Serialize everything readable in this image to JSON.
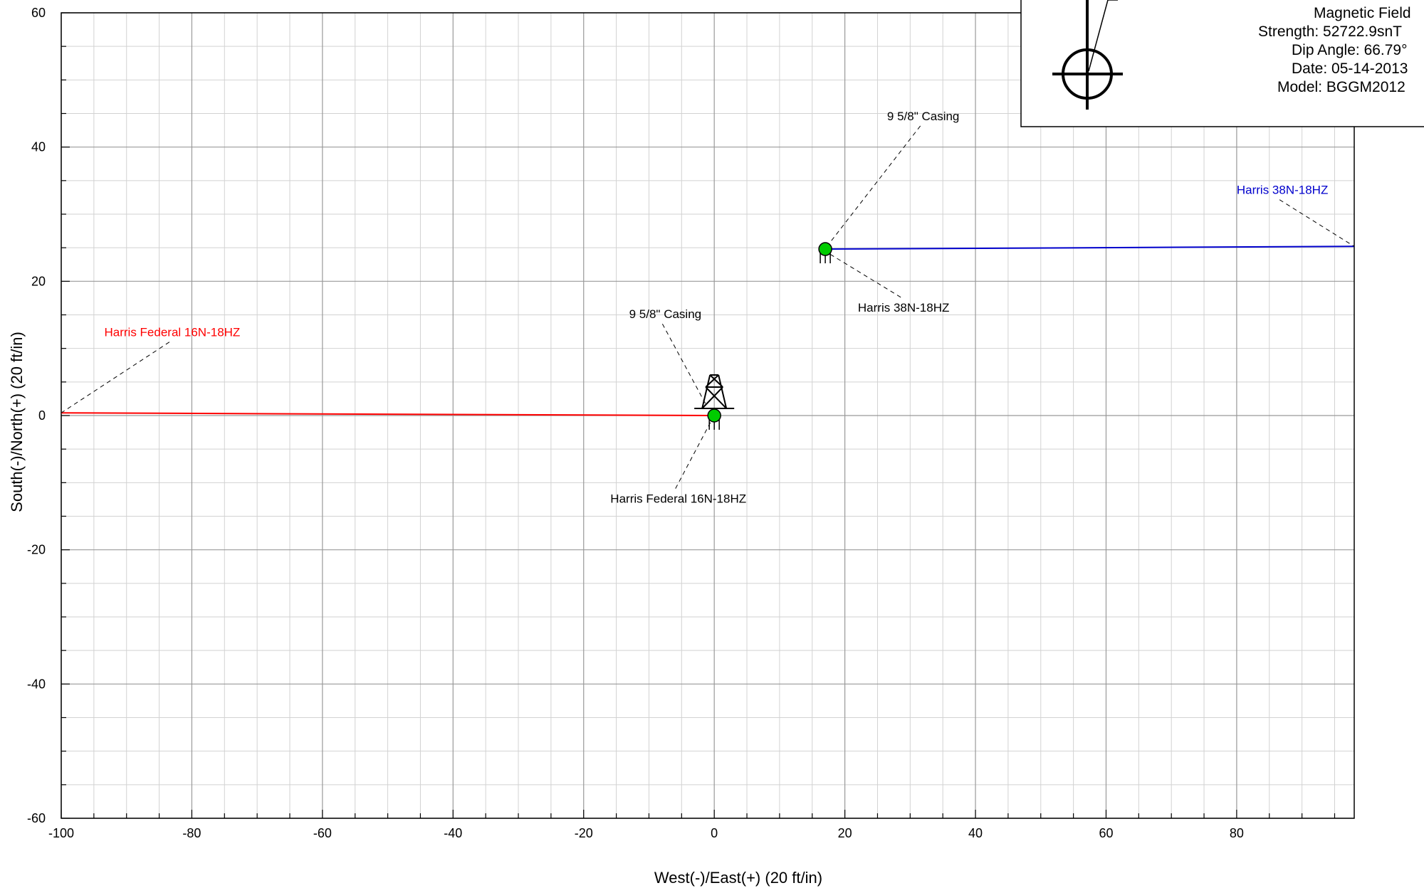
{
  "chart_data": {
    "type": "line",
    "title": "",
    "xlabel": "West(-)/East(+) (20 ft/in)",
    "ylabel": "South(-)/North(+) (20 ft/in)",
    "xlim": [
      -100,
      98
    ],
    "ylim": [
      -60,
      60
    ],
    "x_ticks": [
      -100,
      -80,
      -60,
      -40,
      -20,
      0,
      20,
      40,
      60,
      80
    ],
    "y_ticks": [
      60,
      40,
      20,
      0,
      -20,
      -40,
      -60
    ],
    "x_tick_labels": [
      "-100",
      "-80",
      "-60",
      "-40",
      "-20",
      "0",
      "20",
      "40",
      "60",
      "80"
    ],
    "y_tick_labels": [
      "60",
      "40",
      "20",
      "0",
      "-20",
      "-40",
      "-60"
    ],
    "grid": true,
    "series": [
      {
        "name": "Harris Federal 16N-18HZ",
        "color": "#ff0000",
        "x": [
          0,
          -100
        ],
        "y": [
          0,
          0.4
        ]
      },
      {
        "name": "Harris 38N-18HZ",
        "color": "#0000cc",
        "x": [
          17,
          98
        ],
        "y": [
          24.8,
          25.2
        ]
      }
    ],
    "markers": [
      {
        "x": 0,
        "y": 0,
        "color": "#00cc00",
        "label": "Harris Federal 16N-18HZ"
      },
      {
        "x": 17,
        "y": 24.8,
        "color": "#00cc00",
        "label": "Harris 38N-18HZ"
      }
    ],
    "annotations": [
      {
        "text": "9 5/8\" Casing",
        "x": -7.5,
        "y": 14.5,
        "target_x": -1.2,
        "target_y": 1.5,
        "color": "#000000"
      },
      {
        "text": "Harris Federal 16N-18HZ",
        "x": -5.5,
        "y": -13,
        "target_x": -0.3,
        "target_y": -0.5,
        "color": "#000000"
      },
      {
        "text": "9 5/8\" Casing",
        "x": 32,
        "y": 44,
        "target_x": 17.5,
        "target_y": 25.5,
        "color": "#000000"
      },
      {
        "text": "Harris 38N-18HZ",
        "x": 29,
        "y": 15.5,
        "target_x": 17.8,
        "target_y": 24,
        "color": "#000000"
      },
      {
        "text": "Harris Federal 16N-18HZ",
        "x": -83,
        "y": 11.8,
        "target_x": -100,
        "target_y": 0.4,
        "color": "#ff0000"
      },
      {
        "text": "Harris 38N-18HZ",
        "x": 87,
        "y": 33,
        "target_x": 98,
        "target_y": 25.2,
        "color": "#0000cc"
      }
    ],
    "rig_symbol": {
      "x": 0,
      "y": 0
    }
  },
  "legend": {
    "lines": [
      "Magnetic Field",
      "Strength: 52722.9snT",
      "Dip Angle: 66.79°",
      "Date: 05-14-2013",
      "Model: BGGM2012"
    ]
  }
}
